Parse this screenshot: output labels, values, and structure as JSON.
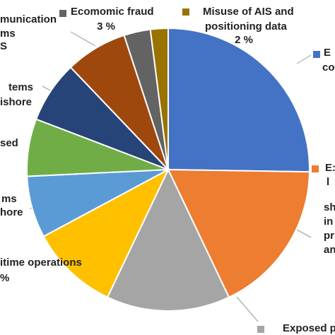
{
  "chart_data": {
    "type": "pie",
    "categories": [
      [
        "E",
        "co"
      ],
      [
        "E:",
        "l",
        "sh",
        "in",
        "pr",
        "an"
      ],
      [
        "Exposed po"
      ],
      [
        "itime operations",
        "%"
      ],
      [
        "ms",
        "hore"
      ],
      [
        "sed"
      ],
      [
        "tems",
        "ishore"
      ],
      [
        "munication",
        "ms",
        "S"
      ],
      [
        "Ecomomic fraud"
      ],
      [
        "Misuse of AIS and",
        "positioning data"
      ]
    ],
    "values": [
      25,
      17.5,
      14,
      10,
      7,
      6.5,
      7,
      7,
      3,
      2
    ],
    "value_labels": [
      null,
      null,
      null,
      null,
      null,
      null,
      null,
      null,
      "3 %",
      "2 %"
    ],
    "colors": [
      "#4472c4",
      "#ed7d31",
      "#a5a5a5",
      "#ffc000",
      "#5b9bd5",
      "#70ad47",
      "#264478",
      "#9e480e",
      "#636363",
      "#997300"
    ]
  }
}
